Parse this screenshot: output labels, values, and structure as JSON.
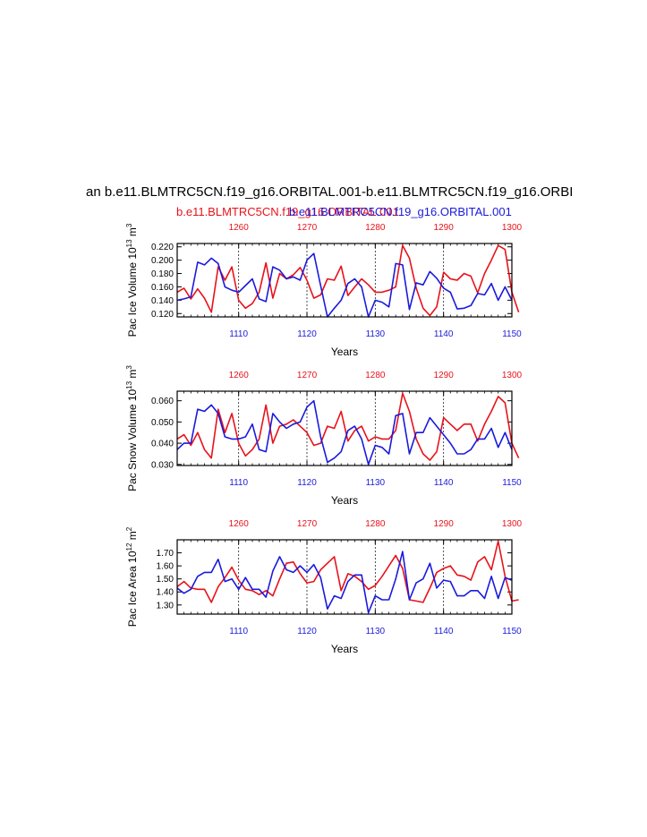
{
  "figure": {
    "main_title": "an b.e11.BLMTRC5CN.f19_g16.ORBITAL.001-b.e11.BLMTRC5CN.f19_g16.ORBI",
    "colors": {
      "red": "#e8121a",
      "blue": "#1a1adc"
    }
  },
  "chart_data": [
    {
      "type": "line",
      "subtitle_red": "b.e11.BLMTRC5CN.f19_g16.ORBITAL.001",
      "subtitle_blue": "b.e11.BLMTRC5CN.f19_g16.ORBITAL.001",
      "ylabel_main": "Pac Ice Volume 10",
      "ylabel_exp1": "13",
      "ylabel_unit": " m",
      "ylabel_exp2": "3",
      "xlabel": "Years",
      "ylim": [
        0.115,
        0.225
      ],
      "yticks": [
        "0.120",
        "0.140",
        "0.160",
        "0.180",
        "0.200",
        "0.220"
      ],
      "bottom_xlim": [
        1101,
        1150
      ],
      "bottom_xticks": [
        "1110",
        "1120",
        "1130",
        "1140",
        "1150"
      ],
      "top_xlim": [
        1251,
        1300
      ],
      "top_xticks": [
        "1260",
        "1270",
        "1280",
        "1290",
        "1300"
      ],
      "series": [
        {
          "name": "b.e11.BLMTRC5CN.f19_g16.ORBITAL.001",
          "axis": "top",
          "color": "red",
          "values": [
            0.152,
            0.158,
            0.142,
            0.157,
            0.143,
            0.122,
            0.19,
            0.17,
            0.19,
            0.14,
            0.128,
            0.135,
            0.152,
            0.196,
            0.143,
            0.18,
            0.172,
            0.178,
            0.189,
            0.17,
            0.143,
            0.148,
            0.172,
            0.17,
            0.191,
            0.147,
            0.16,
            0.172,
            0.163,
            0.152,
            0.152,
            0.155,
            0.16,
            0.222,
            0.203,
            0.158,
            0.128,
            0.117,
            0.13,
            0.182,
            0.172,
            0.17,
            0.18,
            0.176,
            0.151,
            0.18,
            0.2,
            0.222,
            0.216,
            0.152,
            0.122
          ]
        },
        {
          "name": "b.e11.BLMTRC5CN.f19_g16.ORBITAL.001",
          "axis": "bottom",
          "color": "blue",
          "values": [
            0.14,
            0.142,
            0.145,
            0.197,
            0.193,
            0.203,
            0.195,
            0.16,
            0.155,
            0.152,
            0.162,
            0.172,
            0.142,
            0.138,
            0.19,
            0.185,
            0.172,
            0.175,
            0.17,
            0.2,
            0.21,
            0.162,
            0.115,
            0.128,
            0.14,
            0.165,
            0.172,
            0.16,
            0.115,
            0.14,
            0.137,
            0.13,
            0.195,
            0.193,
            0.126,
            0.166,
            0.163,
            0.183,
            0.173,
            0.158,
            0.152,
            0.127,
            0.128,
            0.132,
            0.15,
            0.148,
            0.165,
            0.14,
            0.16,
            0.14
          ]
        }
      ]
    },
    {
      "type": "line",
      "ylabel_main": "Pac Snow Volume 10",
      "ylabel_exp1": "13",
      "ylabel_unit": " m",
      "ylabel_exp2": "3",
      "xlabel": "Years",
      "ylim": [
        0.0295,
        0.0645
      ],
      "yticks": [
        "0.030",
        "0.040",
        "0.050",
        "0.060"
      ],
      "bottom_xlim": [
        1101,
        1150
      ],
      "bottom_xticks": [
        "1110",
        "1120",
        "1130",
        "1140",
        "1150"
      ],
      "top_xlim": [
        1251,
        1300
      ],
      "top_xticks": [
        "1260",
        "1270",
        "1280",
        "1290",
        "1300"
      ],
      "series": [
        {
          "name": "b.e11.BLMTRC5CN.f19_g16.ORBITAL.001",
          "axis": "top",
          "color": "red",
          "values": [
            0.042,
            0.044,
            0.039,
            0.045,
            0.037,
            0.033,
            0.056,
            0.045,
            0.054,
            0.04,
            0.034,
            0.037,
            0.042,
            0.058,
            0.04,
            0.048,
            0.049,
            0.051,
            0.048,
            0.045,
            0.039,
            0.04,
            0.048,
            0.047,
            0.055,
            0.041,
            0.046,
            0.048,
            0.041,
            0.043,
            0.042,
            0.042,
            0.046,
            0.0635,
            0.055,
            0.042,
            0.035,
            0.032,
            0.036,
            0.052,
            0.049,
            0.046,
            0.049,
            0.049,
            0.041,
            0.049,
            0.055,
            0.062,
            0.059,
            0.04,
            0.033
          ]
        },
        {
          "name": "b.e11.BLMTRC5CN.f19_g16.ORBITAL.001",
          "axis": "bottom",
          "color": "blue",
          "values": [
            0.037,
            0.04,
            0.04,
            0.056,
            0.055,
            0.058,
            0.054,
            0.043,
            0.042,
            0.042,
            0.043,
            0.049,
            0.037,
            0.036,
            0.054,
            0.05,
            0.047,
            0.049,
            0.05,
            0.057,
            0.06,
            0.043,
            0.031,
            0.033,
            0.036,
            0.046,
            0.048,
            0.042,
            0.03,
            0.039,
            0.038,
            0.035,
            0.053,
            0.054,
            0.035,
            0.045,
            0.045,
            0.052,
            0.048,
            0.044,
            0.04,
            0.035,
            0.035,
            0.037,
            0.042,
            0.042,
            0.047,
            0.038,
            0.045,
            0.037
          ]
        }
      ]
    },
    {
      "type": "line",
      "ylabel_main": "Pac Ice Area 10",
      "ylabel_exp1": "12",
      "ylabel_unit": " m",
      "ylabel_exp2": "2",
      "xlabel": "Years",
      "ylim": [
        1.23,
        1.8
      ],
      "yticks": [
        "1.30",
        "1.40",
        "1.50",
        "1.60",
        "1.70"
      ],
      "bottom_xlim": [
        1101,
        1150
      ],
      "bottom_xticks": [
        "1110",
        "1120",
        "1130",
        "1140",
        "1150"
      ],
      "top_xlim": [
        1251,
        1300
      ],
      "top_xticks": [
        "1260",
        "1270",
        "1280",
        "1290",
        "1300"
      ],
      "series": [
        {
          "name": "b.e11.BLMTRC5CN.f19_g16.ORBITAL.001",
          "axis": "top",
          "color": "red",
          "values": [
            1.44,
            1.48,
            1.43,
            1.42,
            1.42,
            1.32,
            1.44,
            1.51,
            1.59,
            1.49,
            1.42,
            1.41,
            1.38,
            1.41,
            1.37,
            1.5,
            1.62,
            1.63,
            1.54,
            1.47,
            1.48,
            1.57,
            1.62,
            1.67,
            1.41,
            1.54,
            1.52,
            1.48,
            1.42,
            1.45,
            1.52,
            1.6,
            1.68,
            1.58,
            1.34,
            1.33,
            1.32,
            1.43,
            1.55,
            1.58,
            1.6,
            1.53,
            1.52,
            1.49,
            1.63,
            1.67,
            1.57,
            1.79,
            1.52,
            1.33,
            1.34
          ]
        },
        {
          "name": "b.e11.BLMTRC5CN.f19_g16.ORBITAL.001",
          "axis": "bottom",
          "color": "blue",
          "values": [
            1.43,
            1.39,
            1.42,
            1.52,
            1.55,
            1.55,
            1.65,
            1.48,
            1.5,
            1.42,
            1.51,
            1.42,
            1.42,
            1.36,
            1.56,
            1.67,
            1.57,
            1.55,
            1.6,
            1.55,
            1.61,
            1.51,
            1.27,
            1.37,
            1.35,
            1.48,
            1.53,
            1.53,
            1.24,
            1.37,
            1.34,
            1.34,
            1.5,
            1.71,
            1.34,
            1.47,
            1.5,
            1.62,
            1.43,
            1.49,
            1.48,
            1.37,
            1.37,
            1.41,
            1.41,
            1.35,
            1.52,
            1.35,
            1.51,
            1.49
          ]
        }
      ]
    }
  ]
}
